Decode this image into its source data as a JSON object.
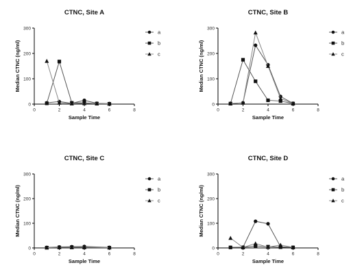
{
  "chart_data": [
    {
      "type": "line",
      "title": "CTNC, Site A",
      "xlabel": "Sample Time",
      "ylabel": "Median CTNC (ng/ml)",
      "xlim": [
        0,
        8
      ],
      "ylim": [
        0,
        300
      ],
      "xticks": [
        0,
        2,
        4,
        6,
        8
      ],
      "yticks": [
        0,
        100,
        200,
        300
      ],
      "legend_position": "right",
      "series": [
        {
          "name": "a",
          "marker": "circle",
          "color": "#555555",
          "x": [
            1,
            2,
            3,
            4,
            5,
            6
          ],
          "y": [
            5,
            10,
            3,
            15,
            3,
            2
          ]
        },
        {
          "name": "b",
          "marker": "square",
          "color": "#555555",
          "x": [
            1,
            2,
            3,
            4,
            5,
            6
          ],
          "y": [
            3,
            168,
            5,
            5,
            2,
            1
          ]
        },
        {
          "name": "c",
          "marker": "triangle",
          "color": "#888888",
          "x": [
            1,
            2,
            3,
            4,
            5,
            6
          ],
          "y": [
            170,
            5,
            2,
            3,
            2,
            1
          ]
        }
      ]
    },
    {
      "type": "line",
      "title": "CTNC, Site B",
      "xlabel": "Sample Time",
      "ylabel": "Median CTNC (ng/ml)",
      "xlim": [
        0,
        8
      ],
      "ylim": [
        0,
        300
      ],
      "xticks": [
        0,
        2,
        4,
        6,
        8
      ],
      "yticks": [
        0,
        100,
        200,
        300
      ],
      "legend_position": "right",
      "series": [
        {
          "name": "a",
          "marker": "circle",
          "color": "#555555",
          "x": [
            1,
            2,
            3,
            4,
            5,
            6
          ],
          "y": [
            2,
            5,
            232,
            155,
            30,
            3
          ]
        },
        {
          "name": "b",
          "marker": "square",
          "color": "#555555",
          "x": [
            1,
            2,
            3,
            4,
            5,
            6
          ],
          "y": [
            2,
            175,
            90,
            15,
            12,
            2
          ]
        },
        {
          "name": "c",
          "marker": "triangle",
          "color": "#888888",
          "x": [
            1,
            2,
            3,
            4,
            5,
            6
          ],
          "y": [
            2,
            5,
            282,
            150,
            22,
            2
          ]
        }
      ]
    },
    {
      "type": "line",
      "title": "CTNC, Site C",
      "xlabel": "Sample Time",
      "ylabel": "Median CTNC (ng/ml)",
      "xlim": [
        0,
        8
      ],
      "ylim": [
        0,
        300
      ],
      "xticks": [
        0,
        2,
        4,
        6,
        8
      ],
      "yticks": [
        0,
        100,
        200,
        300
      ],
      "legend_position": "right",
      "series": [
        {
          "name": "a",
          "marker": "circle",
          "color": "#555555",
          "x": [
            1,
            2,
            3,
            4,
            6
          ],
          "y": [
            2,
            4,
            5,
            6,
            2
          ]
        },
        {
          "name": "b",
          "marker": "square",
          "color": "#555555",
          "x": [
            1,
            2,
            3,
            4,
            6
          ],
          "y": [
            1,
            2,
            3,
            2,
            1
          ]
        },
        {
          "name": "c",
          "marker": "triangle",
          "color": "#888888",
          "x": [
            1,
            2,
            3,
            4,
            6
          ],
          "y": [
            1,
            3,
            2,
            4,
            1
          ]
        }
      ]
    },
    {
      "type": "line",
      "title": "CTNC, Site D",
      "xlabel": "Sample Time",
      "ylabel": "Median CTNC (ng/ml)",
      "xlim": [
        0,
        8
      ],
      "ylim": [
        0,
        300
      ],
      "xticks": [
        0,
        2,
        4,
        6,
        8
      ],
      "yticks": [
        0,
        100,
        200,
        300
      ],
      "legend_position": "right",
      "series": [
        {
          "name": "a",
          "marker": "circle",
          "color": "#555555",
          "x": [
            1,
            2,
            3,
            4,
            5,
            6
          ],
          "y": [
            2,
            3,
            108,
            98,
            5,
            2
          ]
        },
        {
          "name": "b",
          "marker": "square",
          "color": "#555555",
          "x": [
            1,
            2,
            3,
            4,
            5,
            6
          ],
          "y": [
            2,
            2,
            8,
            5,
            3,
            2
          ]
        },
        {
          "name": "c",
          "marker": "triangle",
          "color": "#888888",
          "x": [
            1,
            2,
            3,
            4,
            5,
            6
          ],
          "y": [
            40,
            2,
            18,
            3,
            12,
            2
          ]
        }
      ]
    }
  ]
}
